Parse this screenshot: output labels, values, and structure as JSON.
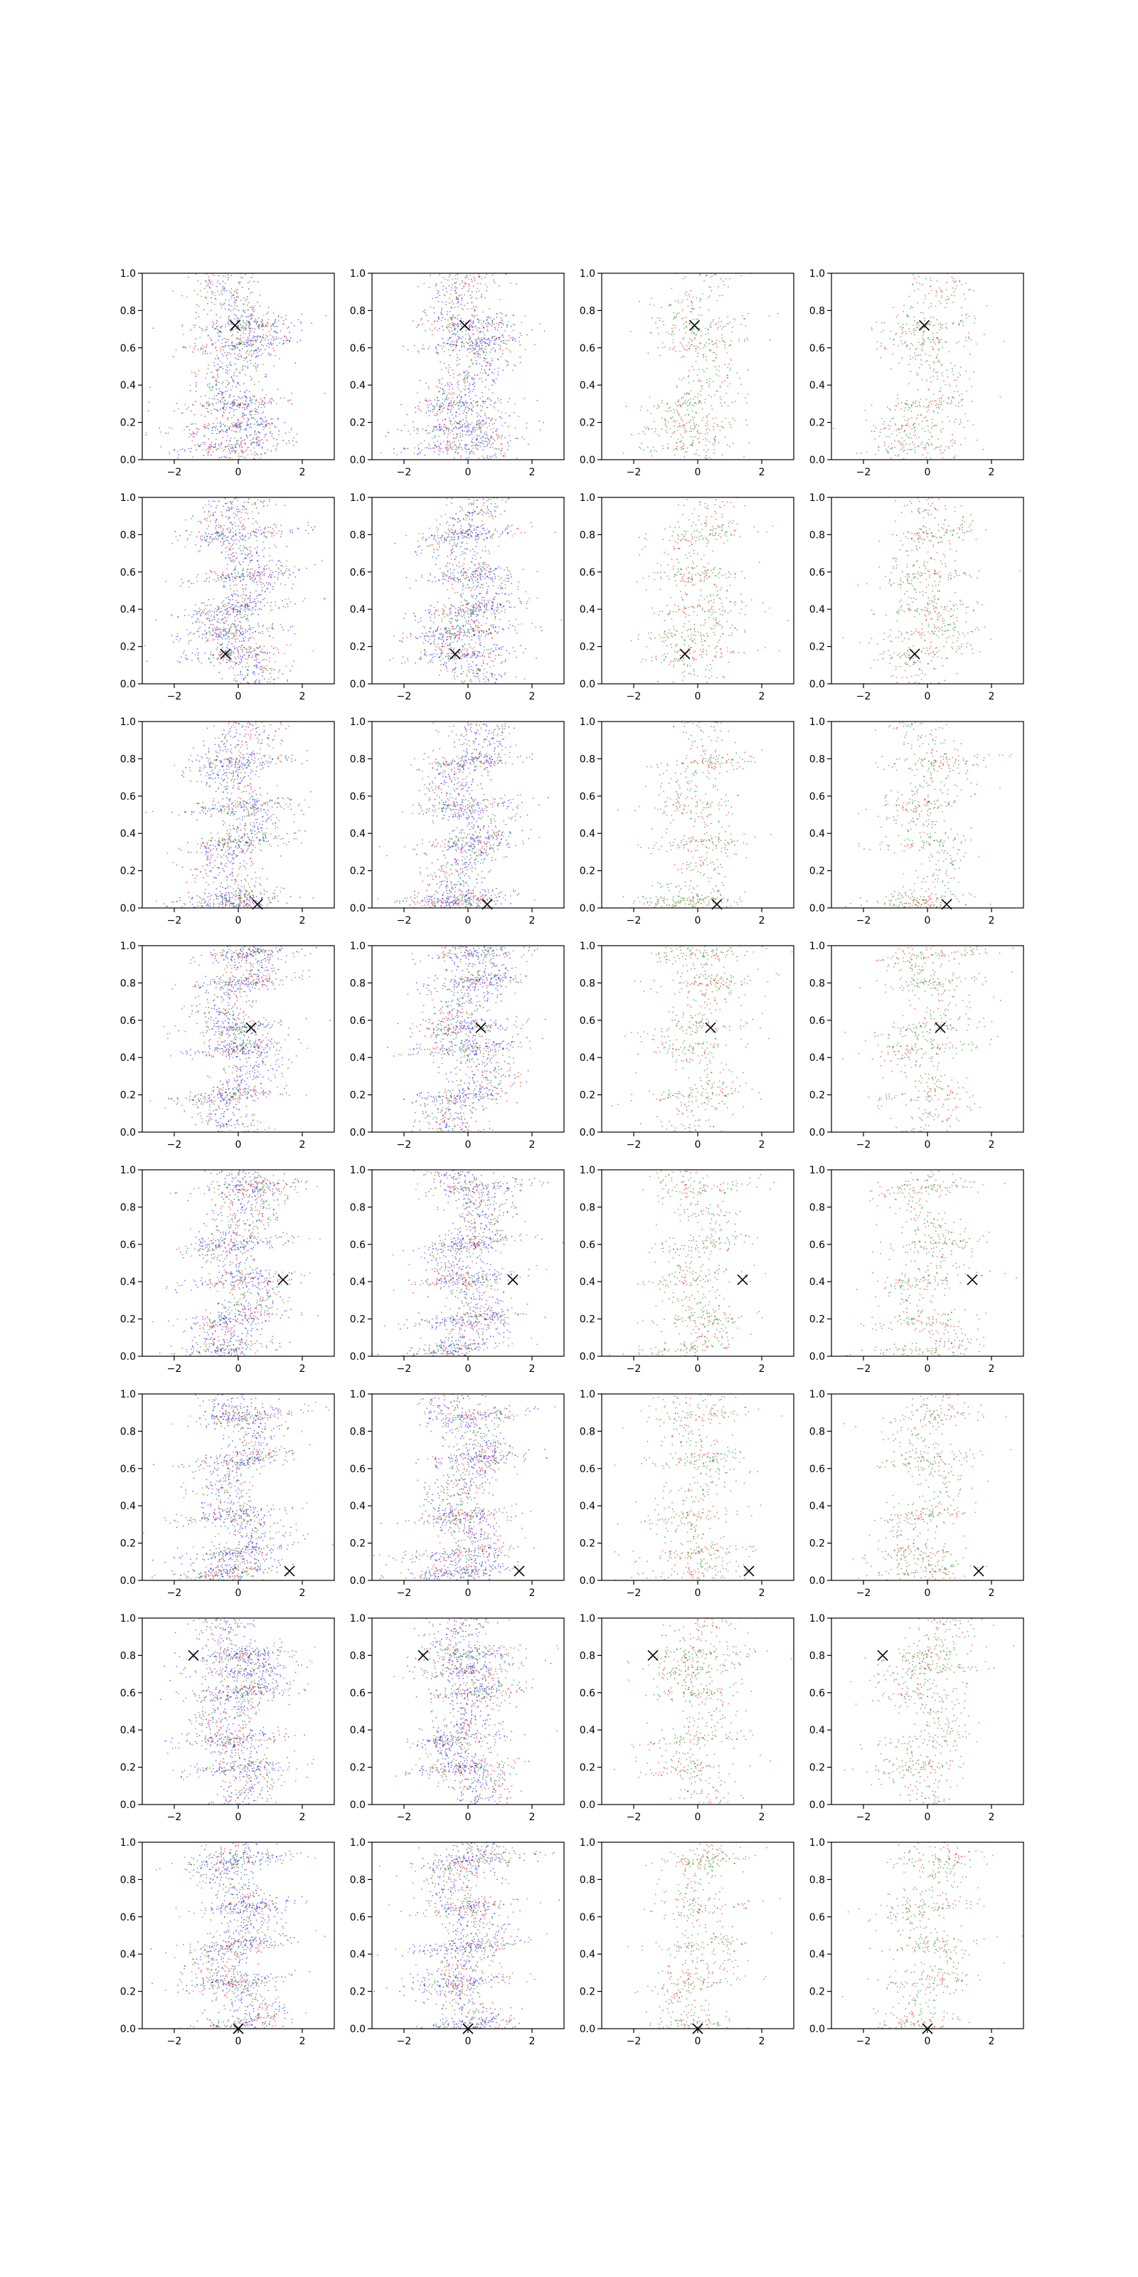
{
  "figure": {
    "rows": 8,
    "cols": 4,
    "colors": {
      "blue": "#0000ff",
      "green": "#008000",
      "red": "#ff0000",
      "marker": "#000000",
      "axis": "#000000"
    }
  },
  "chart_data": {
    "type": "scatter",
    "title": "",
    "xlabel": "",
    "ylabel": "",
    "xlim": [
      -3,
      3
    ],
    "ylim": [
      0,
      1
    ],
    "x_ticks": [
      -2,
      0,
      2
    ],
    "x_tick_labels": [
      "−2",
      "0",
      "2"
    ],
    "y_ticks": [
      0.0,
      0.2,
      0.4,
      0.6,
      0.8,
      1.0
    ],
    "y_tick_labels": [
      "0.0",
      "0.2",
      "0.4",
      "0.6",
      "0.8",
      "1.0"
    ],
    "grid": false,
    "legend": "none",
    "marker_symbol": "×",
    "marker_points": [
      [
        -0.1,
        0.72
      ],
      [
        -0.1,
        0.72
      ],
      [
        -0.1,
        0.72
      ],
      [
        -0.1,
        0.72
      ],
      [
        -0.4,
        0.16
      ],
      [
        -0.4,
        0.16
      ],
      [
        -0.4,
        0.16
      ],
      [
        -0.4,
        0.16
      ],
      [
        0.6,
        0.02
      ],
      [
        0.6,
        0.02
      ],
      [
        0.6,
        0.02
      ],
      [
        0.6,
        0.02
      ],
      [
        0.4,
        0.56
      ],
      [
        0.4,
        0.56
      ],
      [
        0.4,
        0.56
      ],
      [
        0.4,
        0.56
      ],
      [
        1.4,
        0.41
      ],
      [
        1.4,
        0.41
      ],
      [
        1.4,
        0.41
      ],
      [
        1.4,
        0.41
      ],
      [
        1.6,
        0.05
      ],
      [
        1.6,
        0.05
      ],
      [
        1.6,
        0.05
      ],
      [
        1.6,
        0.05
      ],
      [
        -1.4,
        0.8
      ],
      [
        -1.4,
        0.8
      ],
      [
        -1.4,
        0.8
      ],
      [
        -1.4,
        0.8
      ],
      [
        0.0,
        0.0
      ],
      [
        0.0,
        0.0
      ],
      [
        0.0,
        0.0
      ],
      [
        0.0,
        0.0
      ]
    ]
  }
}
